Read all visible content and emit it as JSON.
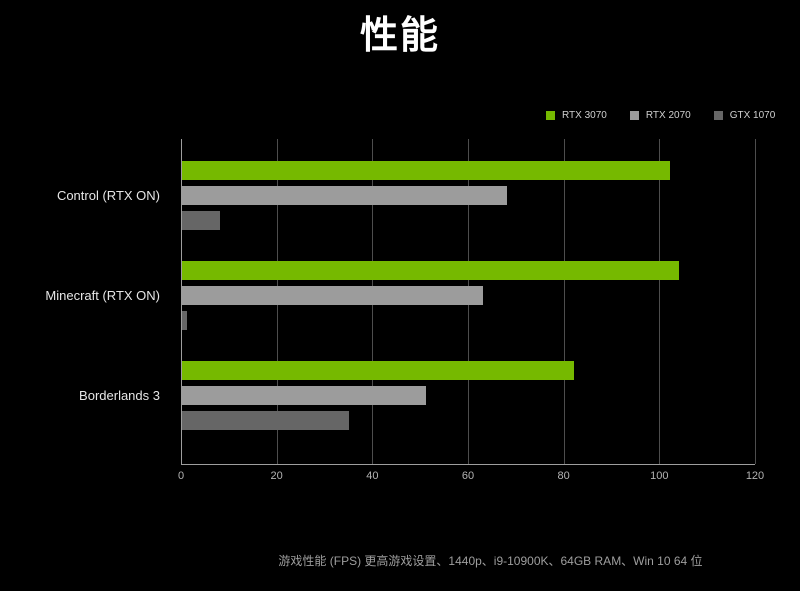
{
  "title": "性能",
  "footnote": "游戏性能 (FPS) 更高游戏设置、1440p、i9-10900K、64GB RAM、Win 10 64 位",
  "colors": {
    "background": "#000000",
    "brand_green": "#76b900",
    "gridline": "#4d4d4d",
    "axis": "#9e9e9e"
  },
  "chart_data": {
    "type": "bar",
    "orientation": "horizontal",
    "title": "性能",
    "categories": [
      "Control (RTX ON)",
      "Minecraft (RTX ON)",
      "Borderlands 3"
    ],
    "series": [
      {
        "name": "RTX 3070",
        "color": "#76b900",
        "values": [
          102,
          104,
          82
        ]
      },
      {
        "name": "RTX 2070",
        "color": "#9c9c9c",
        "values": [
          68,
          63,
          51
        ]
      },
      {
        "name": "GTX 1070",
        "color": "#666666",
        "values": [
          8,
          1,
          35
        ]
      }
    ],
    "xlabel": "",
    "ylabel": "",
    "xlim": [
      0,
      120
    ],
    "xticks": [
      0,
      20,
      40,
      60,
      80,
      100,
      120
    ],
    "grid": true,
    "legend_position": "top-right",
    "footnote": "游戏性能 (FPS) 更高游戏设置、1440p、i9-10900K、64GB RAM、Win 10 64 位"
  }
}
